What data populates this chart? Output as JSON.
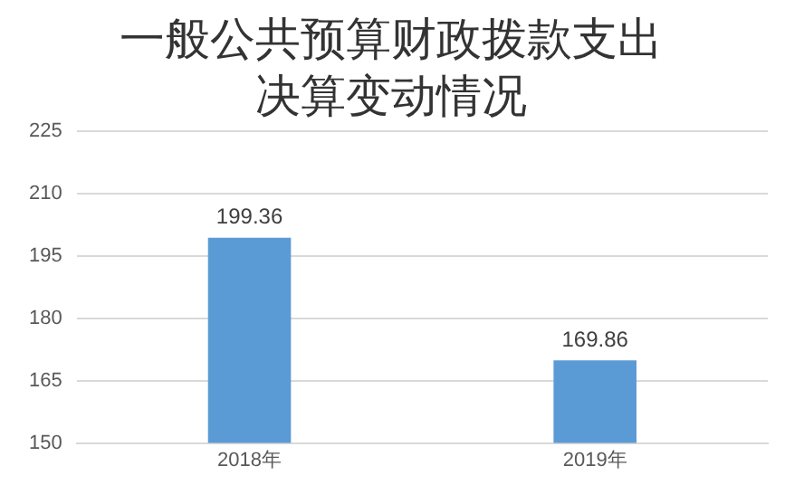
{
  "chart_data": {
    "type": "bar",
    "title": "一般公共预算财政拨款支出决算变动情况",
    "categories": [
      "2018年",
      "2019年"
    ],
    "values": [
      199.36,
      169.86
    ],
    "color": "#5b9bd5",
    "ylim": [
      150,
      225
    ],
    "yticks": [
      150,
      165,
      180,
      195,
      210,
      225
    ],
    "grid": "y",
    "data_labels": true
  }
}
